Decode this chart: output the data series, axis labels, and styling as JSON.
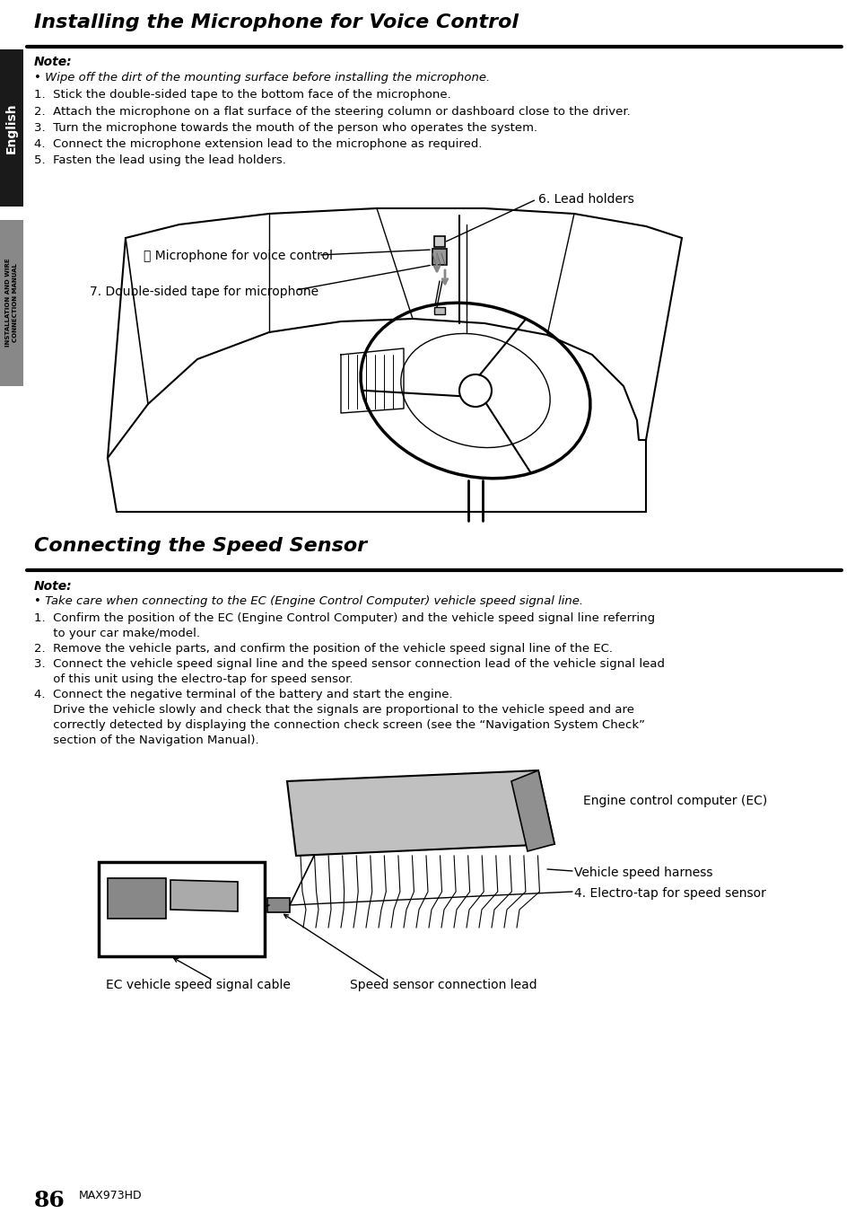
{
  "page_bg": "#ffffff",
  "left_tab1_bg": "#1a1a1a",
  "left_tab2_bg": "#888888",
  "left_tab_text": "English",
  "left_tab2_text": "INSTALLATION AND WIRE\nCONNECTION MANUAL",
  "section1_title": "Installing the Microphone for Voice Control",
  "section1_note_bold": "Note:",
  "section1_note_bullet": "• Wipe off the dirt of the mounting surface before installing the microphone.",
  "section1_steps": [
    "1.  Stick the double-sided tape to the bottom face of the microphone.",
    "2.  Attach the microphone on a flat surface of the steering column or dashboard close to the driver.",
    "3.  Turn the microphone towards the mouth of the person who operates the system.",
    "4.  Connect the microphone extension lead to the microphone as required.",
    "5.  Fasten the lead using the lead holders."
  ],
  "label_lead_holders": "6. Lead holders",
  "label_mic": "⒥ Microphone for voice control",
  "label_tape": "7. Double-sided tape for microphone",
  "section2_title": "Connecting the Speed Sensor",
  "section2_note_bold": "Note:",
  "section2_note_bullet": "• Take care when connecting to the EC (Engine Control Computer) vehicle speed signal line.",
  "section2_steps_line1": "1.  Confirm the position of the EC (Engine Control Computer) and the vehicle speed signal line referring",
  "section2_steps_line1b": "     to your car make/model.",
  "section2_steps_line2": "2.  Remove the vehicle parts, and confirm the position of the vehicle speed signal line of the EC.",
  "section2_steps_line3": "3.  Connect the vehicle speed signal line and the speed sensor connection lead of the vehicle signal lead",
  "section2_steps_line3b": "     of this unit using the electro-tap for speed sensor.",
  "section2_steps_line4": "4.  Connect the negative terminal of the battery and start the engine.",
  "section2_steps_line4b": "     Drive the vehicle slowly and check that the signals are proportional to the vehicle speed and are",
  "section2_steps_line4c": "     correctly detected by displaying the connection check screen (see the “Navigation System Check”",
  "section2_steps_line4d": "     section of the Navigation Manual).",
  "label_ec": "Engine control computer (EC)",
  "label_harness": "Vehicle speed harness",
  "label_electrotap": "4. Electro-tap for speed sensor",
  "label_ec_cable": "EC vehicle speed signal cable",
  "label_speed_lead": "Speed sensor connection lead",
  "page_number": "86",
  "model": "MAX973HD"
}
